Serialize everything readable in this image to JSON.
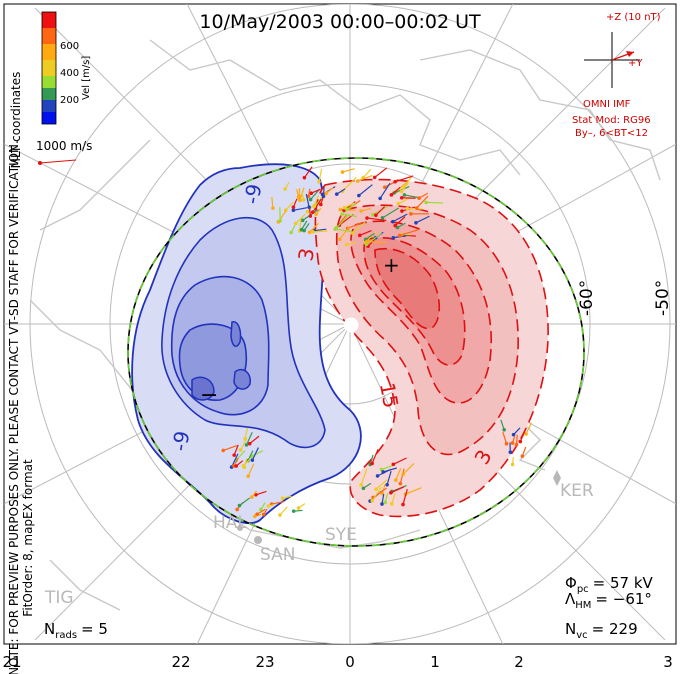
{
  "title": "10/May/2003 00:00–00:02 UT",
  "coord_label": "MLT coordinates",
  "scale": {
    "title": "Vel [m/s]",
    "ticks": [
      "600",
      "400",
      "200"
    ]
  },
  "vector_ref": "1000 m/s",
  "imf": {
    "top": "+Z (10 nT)",
    "right": "+Y",
    "source": "OMNI IMF",
    "model": "Stat Mod: RG96",
    "bins": "By–, 6<BT<12"
  },
  "lat_labels": [
    "-60°",
    "-50°"
  ],
  "contour_labels": [
    "-9",
    "-9",
    "3",
    "15",
    "3"
  ],
  "extrema": {
    "min": "−",
    "max": "+"
  },
  "stations": [
    "KER",
    "HAL",
    "SAN",
    "SYE",
    "TIG"
  ],
  "notes": {
    "preview": "NOTE: FOR PREVIEW PURPOSES ONLY. PLEASE CONTACT VT-SD STAFF FOR VERIFICATION.",
    "fit": "FitOrder: 8, mapEX format"
  },
  "stats": {
    "phi_main": "Φ",
    "phi_sub": "pc",
    "phi_value": "= 57 kV",
    "lam_main": "Λ",
    "lam_sub": "HM",
    "lam_value": "= −61°",
    "nvc_main": "N",
    "nvc_sub": "vc",
    "nvc_value": "= 229",
    "nrads_main": "N",
    "nrads_sub": "rads",
    "nrads_value": "= 5"
  },
  "mlt_ticks": [
    "21",
    "22",
    "23",
    "0",
    "1",
    "2",
    "3"
  ],
  "colors": {
    "negative": "#2233bb",
    "positive": "#dd1111",
    "hmb": "#66cc33"
  }
}
